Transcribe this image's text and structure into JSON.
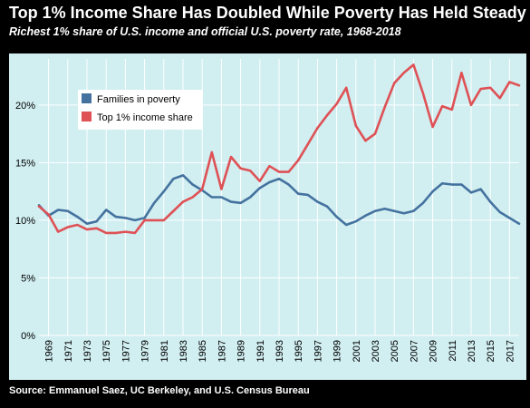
{
  "header": {
    "title": "Top 1% Income Share Has Doubled While Poverty Has Held Steady",
    "subtitle": "Richest 1% share of U.S. income and official U.S. poverty rate, 1968-2018"
  },
  "footer": {
    "source": "Source: Emmanuel Saez, UC Berkeley, and U.S. Census Bureau"
  },
  "colors": {
    "frame": "#000000",
    "panel": "#d1eef1",
    "poverty": "#44729f",
    "top1": "#de5155",
    "grid": "#ffffff"
  },
  "chart_data": {
    "type": "line",
    "title": "Top 1% Income Share Has Doubled While Poverty Has Held Steady",
    "subtitle": "Richest 1% share of U.S. income and official U.S. poverty rate, 1968-2018",
    "xlabel": "",
    "ylabel": "",
    "xlim": [
      1968,
      2018
    ],
    "ylim": [
      0,
      24
    ],
    "grid": true,
    "legend_position": "top-left",
    "x_ticks": [
      1969,
      1971,
      1973,
      1975,
      1977,
      1979,
      1981,
      1983,
      1985,
      1987,
      1989,
      1991,
      1993,
      1995,
      1997,
      1999,
      2001,
      2003,
      2005,
      2007,
      2009,
      2011,
      2013,
      2015,
      2017
    ],
    "y_ticks": [
      {
        "value": 0,
        "label": "0%"
      },
      {
        "value": 5,
        "label": "5%"
      },
      {
        "value": 10,
        "label": "10%"
      },
      {
        "value": 15,
        "label": "15%"
      },
      {
        "value": 20,
        "label": "20%"
      }
    ],
    "x": [
      1968,
      1969,
      1970,
      1971,
      1972,
      1973,
      1974,
      1975,
      1976,
      1977,
      1978,
      1979,
      1980,
      1981,
      1982,
      1983,
      1984,
      1985,
      1986,
      1987,
      1988,
      1989,
      1990,
      1991,
      1992,
      1993,
      1994,
      1995,
      1996,
      1997,
      1998,
      1999,
      2000,
      2001,
      2002,
      2003,
      2004,
      2005,
      2006,
      2007,
      2008,
      2009,
      2010,
      2011,
      2012,
      2013,
      2014,
      2015,
      2016,
      2017,
      2018
    ],
    "series": [
      {
        "name": "Families in poverty",
        "color": "#44729f",
        "values": [
          11.3,
          10.4,
          10.9,
          10.8,
          10.3,
          9.7,
          9.9,
          10.9,
          10.3,
          10.2,
          10.0,
          10.2,
          11.5,
          12.5,
          13.6,
          13.9,
          13.1,
          12.6,
          12.0,
          12.0,
          11.6,
          11.5,
          12.0,
          12.8,
          13.3,
          13.6,
          13.1,
          12.3,
          12.2,
          11.6,
          11.2,
          10.3,
          9.6,
          9.9,
          10.4,
          10.8,
          11.0,
          10.8,
          10.6,
          10.8,
          11.5,
          12.5,
          13.2,
          13.1,
          13.1,
          12.4,
          12.7,
          11.6,
          10.7,
          10.2,
          9.7
        ]
      },
      {
        "name": "Top 1% income share",
        "color": "#de5155",
        "values": [
          11.2,
          10.5,
          9.0,
          9.4,
          9.6,
          9.2,
          9.3,
          8.9,
          8.9,
          9.0,
          8.9,
          10.0,
          10.0,
          10.0,
          10.8,
          11.6,
          12.0,
          12.7,
          15.9,
          12.7,
          15.5,
          14.5,
          14.3,
          13.4,
          14.7,
          14.2,
          14.2,
          15.2,
          16.6,
          18.0,
          19.1,
          20.1,
          21.5,
          18.2,
          16.9,
          17.5,
          19.8,
          21.9,
          22.8,
          23.5,
          21.0,
          18.1,
          19.9,
          19.6,
          22.8,
          20.0,
          21.4,
          21.5,
          20.6,
          22.0,
          21.7
        ]
      }
    ]
  }
}
